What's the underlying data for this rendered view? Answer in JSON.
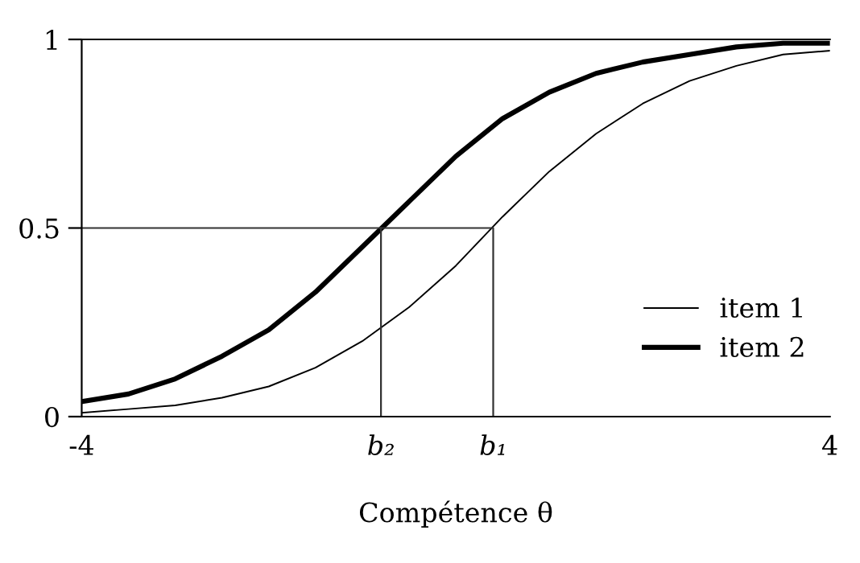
{
  "chart_data": {
    "type": "line",
    "xlabel": "Compétence θ",
    "x": [
      -4,
      -3.5,
      -3,
      -2.5,
      -2,
      -1.5,
      -1,
      -0.5,
      0,
      0.5,
      1,
      1.5,
      2,
      2.5,
      3,
      3.5,
      4
    ],
    "series": [
      {
        "name": "item 1",
        "color": "#000000",
        "values": [
          0.01,
          0.02,
          0.03,
          0.05,
          0.08,
          0.13,
          0.2,
          0.29,
          0.4,
          0.53,
          0.65,
          0.75,
          0.83,
          0.89,
          0.93,
          0.96,
          0.97
        ]
      },
      {
        "name": "item 2",
        "color": "#000000",
        "values": [
          0.04,
          0.06,
          0.1,
          0.16,
          0.23,
          0.33,
          0.45,
          0.57,
          0.69,
          0.79,
          0.86,
          0.91,
          0.94,
          0.96,
          0.98,
          0.99,
          0.99
        ]
      },
      {
        "color": "#333333",
        "x": [
          -4,
          0.4,
          0.4
        ],
        "values": [
          0.5,
          0.5,
          0
        ]
      },
      {
        "color": "#333333",
        "x": [
          -0.8,
          -0.8
        ],
        "values": [
          0.5,
          0
        ]
      }
    ],
    "xlim": [
      -4,
      4
    ],
    "ylim": [
      0,
      1
    ],
    "xticks": [
      -4,
      {
        "value": -0.8,
        "label": "b₂"
      },
      {
        "value": 0.4,
        "label": "b₁"
      },
      4
    ],
    "yticks": [
      0,
      0.5,
      1
    ],
    "grid": false,
    "legend": "bottom right",
    "marker": "none",
    "line_style": "solid"
  }
}
